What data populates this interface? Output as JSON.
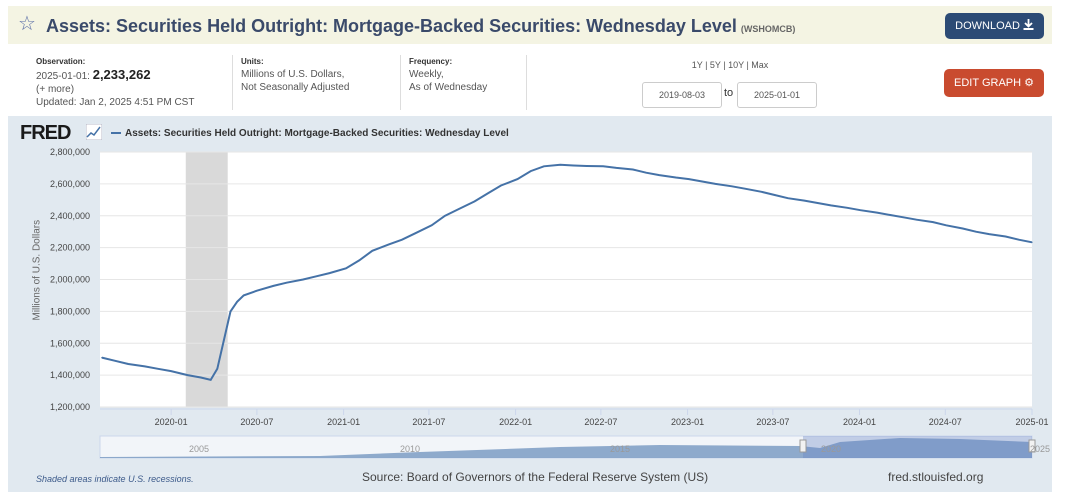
{
  "header": {
    "title": "Assets: Securities Held Outright: Mortgage-Backed Securities: Wednesday Level",
    "series_id": "(WSHOMCB)",
    "download_label": "DOWNLOAD"
  },
  "meta": {
    "observation_label": "Observation:",
    "observation_date": "2025-01-01:",
    "observation_value": "2,233,262",
    "more": "(+ more)",
    "updated_label": "Updated:",
    "updated_value": "Jan 2, 2025 4:51 PM CST",
    "units_label": "Units:",
    "units_line1": "Millions of U.S. Dollars,",
    "units_line2": "Not Seasonally Adjusted",
    "frequency_label": "Frequency:",
    "frequency_line1": "Weekly,",
    "frequency_line2": "As of Wednesday"
  },
  "controls": {
    "ranges": "1Y | 5Y | 10Y | Max",
    "start_date": "2019-08-03",
    "to_label": "to",
    "end_date": "2025-01-01",
    "edit_label": "EDIT GRAPH"
  },
  "logo": "FRED",
  "footer": {
    "recession_note": "Shaded areas indicate U.S. recessions.",
    "source": "Source: Board of Governors of the Federal Reserve System (US)",
    "url": "fred.stlouisfed.org"
  },
  "colors": {
    "series": "#4572a7",
    "recession": "#d9d9d9",
    "download_button": "#2c4b75",
    "edit_button": "#c94b2f"
  },
  "icons": [
    "star-icon",
    "download-icon",
    "gear-icon",
    "fred-chart-icon"
  ],
  "chart_data": {
    "type": "line",
    "ylabel": "Millions of U.S. Dollars",
    "xlim": [
      "2019-08-03",
      "2025-01-01"
    ],
    "ylim": [
      1200000,
      2800000
    ],
    "yticks": [
      1200000,
      1400000,
      1600000,
      1800000,
      2000000,
      2200000,
      2400000,
      2600000,
      2800000
    ],
    "ytick_labels": [
      "1,200,000",
      "1,400,000",
      "1,600,000",
      "1,800,000",
      "2,000,000",
      "2,200,000",
      "2,400,000",
      "2,600,000",
      "2,800,000"
    ],
    "xticks": [
      "2020-01-01",
      "2020-07-01",
      "2021-01-01",
      "2021-07-01",
      "2022-01-01",
      "2022-07-01",
      "2023-01-01",
      "2023-07-01",
      "2024-01-01",
      "2024-07-01",
      "2025-01-01"
    ],
    "xtick_labels": [
      "2020-01",
      "2020-07",
      "2021-01",
      "2021-07",
      "2022-01",
      "2022-07",
      "2023-01",
      "2023-07",
      "2024-01",
      "2024-07",
      "2025-01"
    ],
    "recessions": [
      [
        "2020-02-01",
        "2020-04-30"
      ]
    ],
    "grid": true,
    "series": [
      {
        "name": "Assets: Securities Held Outright: Mortgage-Backed Securities: Wednesday Level",
        "x": [
          "2019-08-07",
          "2019-09-04",
          "2019-10-02",
          "2019-11-06",
          "2019-12-04",
          "2020-01-01",
          "2020-02-05",
          "2020-03-04",
          "2020-03-25",
          "2020-04-08",
          "2020-04-22",
          "2020-05-06",
          "2020-05-20",
          "2020-06-03",
          "2020-07-01",
          "2020-08-05",
          "2020-09-02",
          "2020-10-07",
          "2020-11-04",
          "2020-12-02",
          "2021-01-06",
          "2021-02-03",
          "2021-03-03",
          "2021-04-07",
          "2021-05-05",
          "2021-06-02",
          "2021-07-07",
          "2021-08-04",
          "2021-09-01",
          "2021-10-06",
          "2021-11-03",
          "2021-12-01",
          "2022-01-05",
          "2022-02-02",
          "2022-03-02",
          "2022-04-06",
          "2022-05-04",
          "2022-06-01",
          "2022-07-06",
          "2022-08-03",
          "2022-09-07",
          "2022-10-05",
          "2022-11-02",
          "2022-12-07",
          "2023-01-04",
          "2023-02-01",
          "2023-03-01",
          "2023-04-05",
          "2023-05-03",
          "2023-06-07",
          "2023-07-05",
          "2023-08-02",
          "2023-09-06",
          "2023-10-04",
          "2023-11-01",
          "2023-12-06",
          "2024-01-03",
          "2024-02-07",
          "2024-03-06",
          "2024-04-03",
          "2024-05-01",
          "2024-06-05",
          "2024-07-03",
          "2024-08-07",
          "2024-09-04",
          "2024-10-02",
          "2024-11-06",
          "2024-12-04",
          "2025-01-01"
        ],
        "y": [
          1510000,
          1490000,
          1470000,
          1455000,
          1440000,
          1425000,
          1400000,
          1385000,
          1370000,
          1440000,
          1620000,
          1800000,
          1860000,
          1900000,
          1930000,
          1960000,
          1980000,
          2000000,
          2020000,
          2040000,
          2070000,
          2120000,
          2180000,
          2220000,
          2250000,
          2290000,
          2340000,
          2400000,
          2440000,
          2490000,
          2540000,
          2590000,
          2630000,
          2680000,
          2710000,
          2720000,
          2715000,
          2712000,
          2710000,
          2700000,
          2690000,
          2670000,
          2655000,
          2640000,
          2630000,
          2615000,
          2600000,
          2585000,
          2570000,
          2550000,
          2530000,
          2510000,
          2495000,
          2480000,
          2465000,
          2450000,
          2435000,
          2420000,
          2405000,
          2390000,
          2375000,
          2360000,
          2340000,
          2320000,
          2300000,
          2285000,
          2270000,
          2250000,
          2233262
        ]
      }
    ],
    "navigator": {
      "tick_labels": [
        "2005",
        "2010",
        "2015",
        "2020",
        "2025"
      ]
    }
  }
}
